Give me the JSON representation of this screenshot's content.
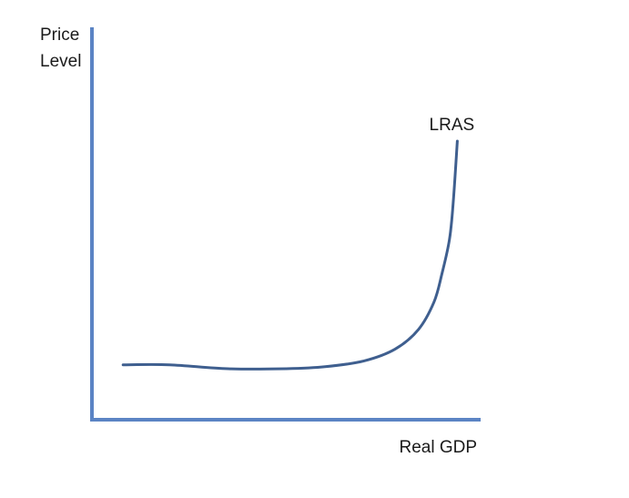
{
  "chart_data": {
    "type": "line",
    "title": "",
    "ylabel_line1": "Price",
    "ylabel_line2": "Level",
    "xlabel": "Real GDP",
    "axis_color": "#5b84c4",
    "curve_color": "#3f5f8f",
    "grid": false,
    "legend": "none",
    "xlim": [
      0,
      100
    ],
    "ylim": [
      0,
      100
    ],
    "series": [
      {
        "name": "LRAS",
        "label_position": "top-right",
        "x": [
          8,
          20,
          35,
          50,
          60,
          70,
          78,
          84,
          88,
          90,
          92,
          93,
          94
        ],
        "y": [
          14,
          14,
          13,
          13,
          13.5,
          15,
          18,
          23,
          30,
          37,
          46,
          56,
          71
        ]
      }
    ]
  }
}
